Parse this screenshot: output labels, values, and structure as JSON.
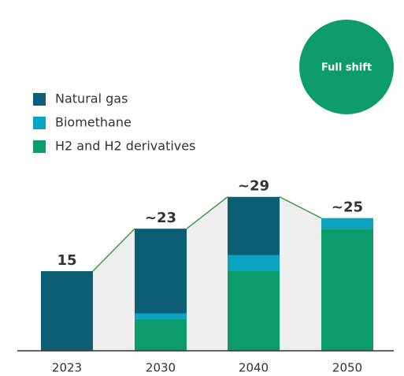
{
  "chart_data": {
    "type": "bar",
    "stacked": true,
    "annotation": "Full shift",
    "categories": [
      "2023",
      "2030",
      "2040",
      "2050"
    ],
    "series": [
      {
        "name": "Natural gas",
        "color": "#0b5e73",
        "values": [
          15,
          16,
          11,
          0
        ]
      },
      {
        "name": "Biomethane",
        "color": "#0aa3c2",
        "values": [
          0,
          1,
          3,
          2
        ]
      },
      {
        "name": "H2 and H2 derivatives",
        "color": "#0c9c6c",
        "values": [
          0,
          6,
          15,
          23
        ]
      }
    ],
    "totals": {
      "values": [
        15,
        23,
        29,
        25
      ],
      "value_labels": [
        "15",
        "~23",
        "~29",
        "~25"
      ]
    },
    "ylim": [
      0,
      30
    ]
  }
}
